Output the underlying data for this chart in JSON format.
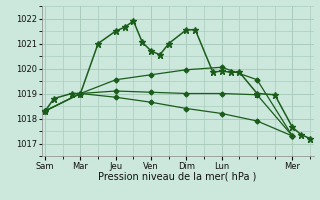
{
  "background_color": "#cce8dc",
  "grid_color": "#aaccbc",
  "line_color": "#1a5c1a",
  "xlabel": "Pression niveau de la mer( hPa )",
  "ylim": [
    1016.5,
    1022.5
  ],
  "yticks": [
    1017,
    1018,
    1019,
    1020,
    1021,
    1022
  ],
  "xlim": [
    -0.2,
    15.2
  ],
  "x_day_labels": [
    "Sam",
    "Mar",
    "Jeu",
    "Ven",
    "Dim",
    "Lun",
    "Mer"
  ],
  "x_day_positions": [
    0,
    2,
    4,
    6,
    8,
    10,
    14
  ],
  "series": [
    {
      "x": [
        0,
        0.5,
        1.5,
        2.0,
        3.0,
        4.0,
        4.5,
        5.0,
        5.5,
        6.0,
        6.5,
        7.0,
        8.0,
        8.5,
        9.5,
        10.0,
        10.5,
        11.0,
        12.0,
        13.0,
        14.0,
        14.5,
        15.0
      ],
      "y": [
        1018.3,
        1018.8,
        1019.0,
        1019.0,
        1021.0,
        1021.5,
        1021.65,
        1021.9,
        1021.05,
        1020.7,
        1020.55,
        1021.0,
        1021.55,
        1021.55,
        1019.85,
        1019.9,
        1019.85,
        1019.85,
        1019.0,
        1018.95,
        1017.65,
        1017.35,
        1017.2
      ],
      "marker": "*",
      "markersize": 4.5,
      "linewidth": 1.1
    },
    {
      "x": [
        0,
        2,
        4,
        6,
        8,
        10,
        12,
        14
      ],
      "y": [
        1018.3,
        1019.0,
        1019.55,
        1019.75,
        1019.95,
        1020.05,
        1019.55,
        1017.3
      ],
      "marker": "D",
      "markersize": 2.5,
      "linewidth": 0.9
    },
    {
      "x": [
        0,
        2,
        4,
        6,
        8,
        10,
        12,
        14
      ],
      "y": [
        1018.3,
        1019.0,
        1019.1,
        1019.05,
        1019.0,
        1019.0,
        1018.95,
        1017.3
      ],
      "marker": "D",
      "markersize": 2.5,
      "linewidth": 0.9
    },
    {
      "x": [
        0,
        2,
        4,
        6,
        8,
        10,
        12,
        14
      ],
      "y": [
        1018.3,
        1019.0,
        1018.85,
        1018.65,
        1018.4,
        1018.2,
        1017.9,
        1017.3
      ],
      "marker": "D",
      "markersize": 2.5,
      "linewidth": 0.9
    }
  ]
}
